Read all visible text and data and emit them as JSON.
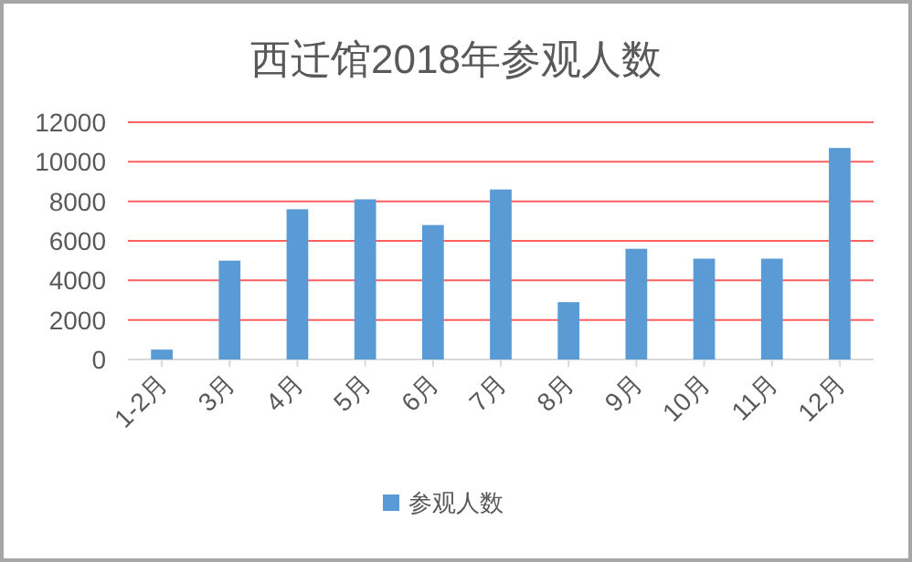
{
  "chart_data": {
    "type": "bar",
    "title": "西迁馆2018年参观人数",
    "categories": [
      "1-2月",
      "3月",
      "4月",
      "5月",
      "6月",
      "7月",
      "8月",
      "9月",
      "10月",
      "11月",
      "12月"
    ],
    "series": [
      {
        "name": "参观人数",
        "color": "#5b9bd5",
        "values": [
          500,
          5000,
          7600,
          8100,
          6800,
          8600,
          2900,
          5600,
          5100,
          5100,
          10700
        ]
      }
    ],
    "ylim": [
      0,
      12000
    ],
    "yticks": [
      0,
      2000,
      4000,
      6000,
      8000,
      10000,
      12000
    ],
    "grid": "y",
    "legend": "bottom"
  }
}
